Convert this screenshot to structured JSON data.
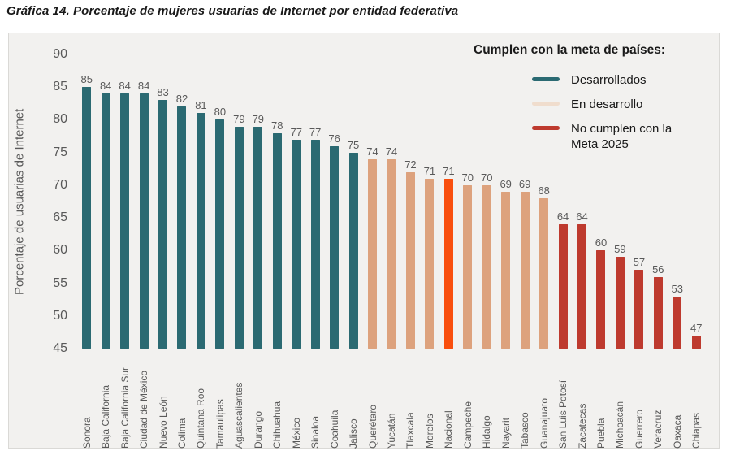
{
  "figure_title": "Gráfica 14. Porcentaje de mujeres usuarias de Internet por entidad federativa",
  "legend": {
    "title": "Cumplen con la meta de países:",
    "items": [
      {
        "label": "Desarrollados",
        "color": "#2b6a72"
      },
      {
        "label": "En desarrollo",
        "color": "#f0ddcd"
      },
      {
        "label": "No cumplen con la Meta 2025",
        "color": "#be3a2e"
      }
    ]
  },
  "colors": {
    "developed": "#2b6a72",
    "developing": "#dda27d",
    "national_highlight": "#f94f0e",
    "not_meeting": "#be3a2e",
    "plot_background": "#f2f1ef",
    "axis_text": "#595959"
  },
  "chart_data": {
    "type": "bar",
    "title": "Gráfica 14. Porcentaje de mujeres usuarias de Internet por entidad federativa",
    "xlabel": "",
    "ylabel": "Porcentaje de usuarias de Internet",
    "ylim": [
      45,
      90
    ],
    "yticks": [
      90,
      85,
      80,
      75,
      70,
      65,
      60,
      55,
      50,
      45
    ],
    "grid": false,
    "legend_position": "top-right",
    "categories": [
      "Sonora",
      "Baja California",
      "Baja California Sur",
      "Ciudad de México",
      "Nuevo León",
      "Colima",
      "Quintana Roo",
      "Tamaulipas",
      "Aguascalientes",
      "Durango",
      "Chihuahua",
      "México",
      "Sinaloa",
      "Coahuila",
      "Jalisco",
      "Querétaro",
      "Yucatán",
      "Tlaxcala",
      "Morelos",
      "Nacional",
      "Campeche",
      "Hidalgo",
      "Nayarit",
      "Tabasco",
      "Guanajuato",
      "San Luis Potosí",
      "Zacatecas",
      "Puebla",
      "Michoacán",
      "Guerrero",
      "Veracruz",
      "Oaxaca",
      "Chiapas"
    ],
    "values": [
      85,
      84,
      84,
      84,
      83,
      82,
      81,
      80,
      79,
      79,
      78,
      77,
      77,
      76,
      75,
      74,
      74,
      72,
      71,
      71,
      70,
      70,
      69,
      69,
      68,
      64,
      64,
      60,
      59,
      57,
      56,
      53,
      47
    ],
    "groups": [
      "developed",
      "developed",
      "developed",
      "developed",
      "developed",
      "developed",
      "developed",
      "developed",
      "developed",
      "developed",
      "developed",
      "developed",
      "developed",
      "developed",
      "developed",
      "developing",
      "developing",
      "developing",
      "developing",
      "national_highlight",
      "developing",
      "developing",
      "developing",
      "developing",
      "developing",
      "not_meeting",
      "not_meeting",
      "not_meeting",
      "not_meeting",
      "not_meeting",
      "not_meeting",
      "not_meeting",
      "not_meeting"
    ],
    "group_colors": {
      "developed": "#2b6a72",
      "developing": "#dda27d",
      "national_highlight": "#f94f0e",
      "not_meeting": "#be3a2e"
    }
  }
}
